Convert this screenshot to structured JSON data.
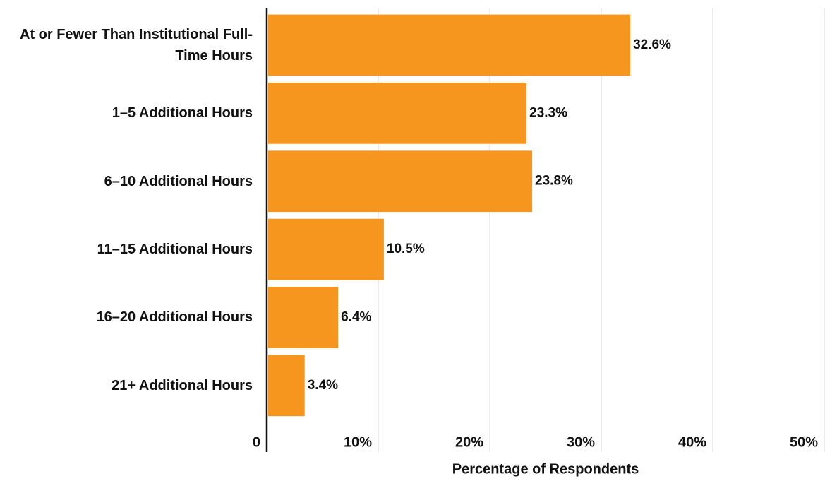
{
  "chart_data": {
    "type": "bar",
    "orientation": "horizontal",
    "x_label": "Percentage of Respondents",
    "categories": [
      "At or Fewer Than Institutional Full-Time Hours",
      "1–5 Additional Hours",
      "6–10 Additional Hours",
      "11–15 Additional Hours",
      "16–20 Additional Hours",
      "21+ Additional Hours"
    ],
    "values": [
      32.6,
      23.3,
      23.8,
      10.5,
      6.4,
      3.4
    ],
    "value_labels": [
      "32.6%",
      "23.3%",
      "23.8%",
      "10.5%",
      "6.4%",
      "3.4%"
    ],
    "color": "#f7961e",
    "xlim": [
      0,
      50
    ],
    "xticks": [
      0,
      {
        "value": 10,
        "label": "10%"
      },
      {
        "value": 20,
        "label": "20%"
      },
      {
        "value": 30,
        "label": "30%"
      },
      {
        "value": 40,
        "label": "40%"
      },
      {
        "value": 50,
        "label": "50%"
      }
    ],
    "grid": true
  }
}
